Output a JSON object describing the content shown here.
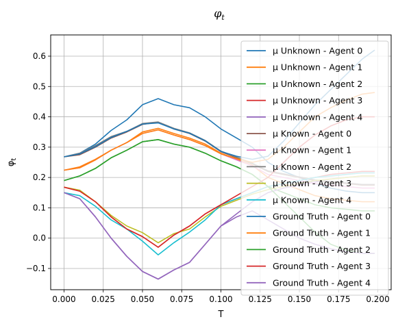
{
  "chart_data": {
    "type": "line",
    "title": "φ_t",
    "xlabel": "T",
    "ylabel": "φ_t",
    "xlim": [
      -0.0085,
      0.2085
    ],
    "ylim": [
      -0.17,
      0.67
    ],
    "grid": true,
    "legend_position": "top-right",
    "xticks": [
      "0.000",
      "0.025",
      "0.050",
      "0.075",
      "0.100",
      "0.125",
      "0.150",
      "0.175",
      "0.200"
    ],
    "xtick_values": [
      0,
      0.025,
      0.05,
      0.075,
      0.1,
      0.125,
      0.15,
      0.175,
      0.2
    ],
    "yticks": [
      "−0.1",
      "0.0",
      "0.1",
      "0.2",
      "0.3",
      "0.4",
      "0.5",
      "0.6"
    ],
    "ytick_values": [
      -0.1,
      0,
      0.1,
      0.2,
      0.3,
      0.4,
      0.5,
      0.6
    ],
    "x": [
      0,
      0.01,
      0.02,
      0.03,
      0.04,
      0.05,
      0.06,
      0.07,
      0.08,
      0.09,
      0.1,
      0.11,
      0.12,
      0.13,
      0.14,
      0.15,
      0.16,
      0.17,
      0.18,
      0.19,
      0.198
    ],
    "series": [
      {
        "name": "μ Unknown - Agent 0",
        "color": "#1f77b4",
        "values": [
          0.268,
          0.28,
          0.31,
          0.355,
          0.39,
          0.44,
          0.46,
          0.44,
          0.43,
          0.4,
          0.36,
          0.33,
          0.3,
          0.25,
          0.22,
          0.2,
          0.18,
          0.165,
          0.155,
          0.15,
          0.15
        ]
      },
      {
        "name": "μ Unknown - Agent 1",
        "color": "#ff7f0e",
        "values": [
          0.224,
          0.235,
          0.26,
          0.29,
          0.315,
          0.35,
          0.362,
          0.345,
          0.33,
          0.31,
          0.28,
          0.26,
          0.24,
          0.2,
          0.18,
          0.16,
          0.14,
          0.13,
          0.125,
          0.12,
          0.12
        ]
      },
      {
        "name": "μ Unknown - Agent 2",
        "color": "#2ca02c",
        "values": [
          0.19,
          0.205,
          0.23,
          0.265,
          0.29,
          0.318,
          0.325,
          0.31,
          0.3,
          0.28,
          0.255,
          0.235,
          0.21,
          0.17,
          0.15,
          0.13,
          0.11,
          0.1,
          0.095,
          0.09,
          0.09
        ]
      },
      {
        "name": "μ Unknown - Agent 3",
        "color": "#d62728",
        "values": [
          0.168,
          0.155,
          0.12,
          0.07,
          0.03,
          0.005,
          -0.03,
          0.01,
          0.04,
          0.08,
          0.11,
          0.13,
          0.15,
          0.17,
          0.18,
          0.19,
          0.2,
          0.21,
          0.215,
          0.22,
          0.22
        ]
      },
      {
        "name": "μ Unknown - Agent 4",
        "color": "#9467bd",
        "values": [
          0.15,
          0.13,
          0.07,
          0.0,
          -0.06,
          -0.11,
          -0.135,
          -0.105,
          -0.08,
          -0.02,
          0.04,
          0.08,
          0.12,
          0.15,
          0.165,
          0.175,
          0.185,
          0.195,
          0.2,
          0.205,
          0.205
        ]
      },
      {
        "name": "μ Known - Agent 0",
        "color": "#8c564b",
        "values": [
          0.268,
          0.275,
          0.3,
          0.33,
          0.35,
          0.375,
          0.382,
          0.36,
          0.345,
          0.32,
          0.285,
          0.265,
          0.245,
          0.22,
          0.21,
          0.2,
          0.19,
          0.185,
          0.18,
          0.175,
          0.175
        ]
      },
      {
        "name": "μ Known - Agent 1",
        "color": "#e377c2",
        "values": [
          0.224,
          0.232,
          0.258,
          0.29,
          0.315,
          0.345,
          0.357,
          0.34,
          0.325,
          0.305,
          0.278,
          0.258,
          0.238,
          0.21,
          0.2,
          0.19,
          0.18,
          0.175,
          0.17,
          0.165,
          0.165
        ]
      },
      {
        "name": "μ Known - Agent 2",
        "color": "#7f7f7f",
        "values": [
          0.268,
          0.28,
          0.305,
          0.335,
          0.352,
          0.378,
          0.383,
          0.362,
          0.347,
          0.322,
          0.287,
          0.267,
          0.247,
          0.222,
          0.212,
          0.202,
          0.192,
          0.187,
          0.182,
          0.177,
          0.177
        ]
      },
      {
        "name": "μ Known - Agent 3",
        "color": "#bcbd22",
        "values": [
          0.168,
          0.158,
          0.12,
          0.075,
          0.04,
          0.018,
          -0.015,
          0.015,
          0.03,
          0.07,
          0.105,
          0.125,
          0.145,
          0.16,
          0.17,
          0.18,
          0.19,
          0.195,
          0.2,
          0.205,
          0.205
        ]
      },
      {
        "name": "μ Known - Agent 4",
        "color": "#17becf",
        "values": [
          0.15,
          0.14,
          0.105,
          0.06,
          0.03,
          -0.01,
          -0.055,
          -0.015,
          0.02,
          0.06,
          0.11,
          0.13,
          0.15,
          0.17,
          0.18,
          0.19,
          0.2,
          0.205,
          0.21,
          0.215,
          0.215
        ]
      },
      {
        "name": "Ground Truth - Agent 0",
        "color": "#1f77b4",
        "values": [
          0.268,
          0.278,
          0.302,
          0.332,
          0.352,
          0.376,
          0.38,
          0.36,
          0.346,
          0.321,
          0.286,
          0.27,
          0.26,
          0.27,
          0.32,
          0.38,
          0.44,
          0.49,
          0.54,
          0.59,
          0.62
        ]
      },
      {
        "name": "Ground Truth - Agent 1",
        "color": "#ff7f0e",
        "values": [
          0.224,
          0.232,
          0.258,
          0.29,
          0.315,
          0.345,
          0.357,
          0.34,
          0.325,
          0.305,
          0.278,
          0.262,
          0.25,
          0.26,
          0.3,
          0.35,
          0.4,
          0.43,
          0.455,
          0.475,
          0.48
        ]
      },
      {
        "name": "Ground Truth - Agent 2",
        "color": "#2ca02c",
        "values": [
          0.19,
          0.205,
          0.23,
          0.265,
          0.29,
          0.318,
          0.325,
          0.31,
          0.3,
          0.28,
          0.255,
          0.235,
          0.21,
          0.17,
          0.12,
          0.07,
          0.02,
          -0.02,
          -0.04,
          -0.05,
          -0.05
        ]
      },
      {
        "name": "Ground Truth - Agent 3",
        "color": "#d62728",
        "values": [
          0.168,
          0.155,
          0.12,
          0.07,
          0.03,
          0.005,
          -0.03,
          0.01,
          0.04,
          0.08,
          0.11,
          0.14,
          0.17,
          0.2,
          0.25,
          0.3,
          0.34,
          0.37,
          0.39,
          0.4,
          0.4
        ]
      },
      {
        "name": "Ground Truth - Agent 4",
        "color": "#9467bd",
        "values": [
          0.15,
          0.13,
          0.07,
          0.0,
          -0.06,
          -0.11,
          -0.135,
          -0.105,
          -0.08,
          -0.02,
          0.04,
          0.07,
          0.09,
          0.06,
          0.03,
          0.0,
          -0.02,
          -0.035,
          -0.045,
          -0.05,
          -0.05
        ]
      }
    ]
  }
}
